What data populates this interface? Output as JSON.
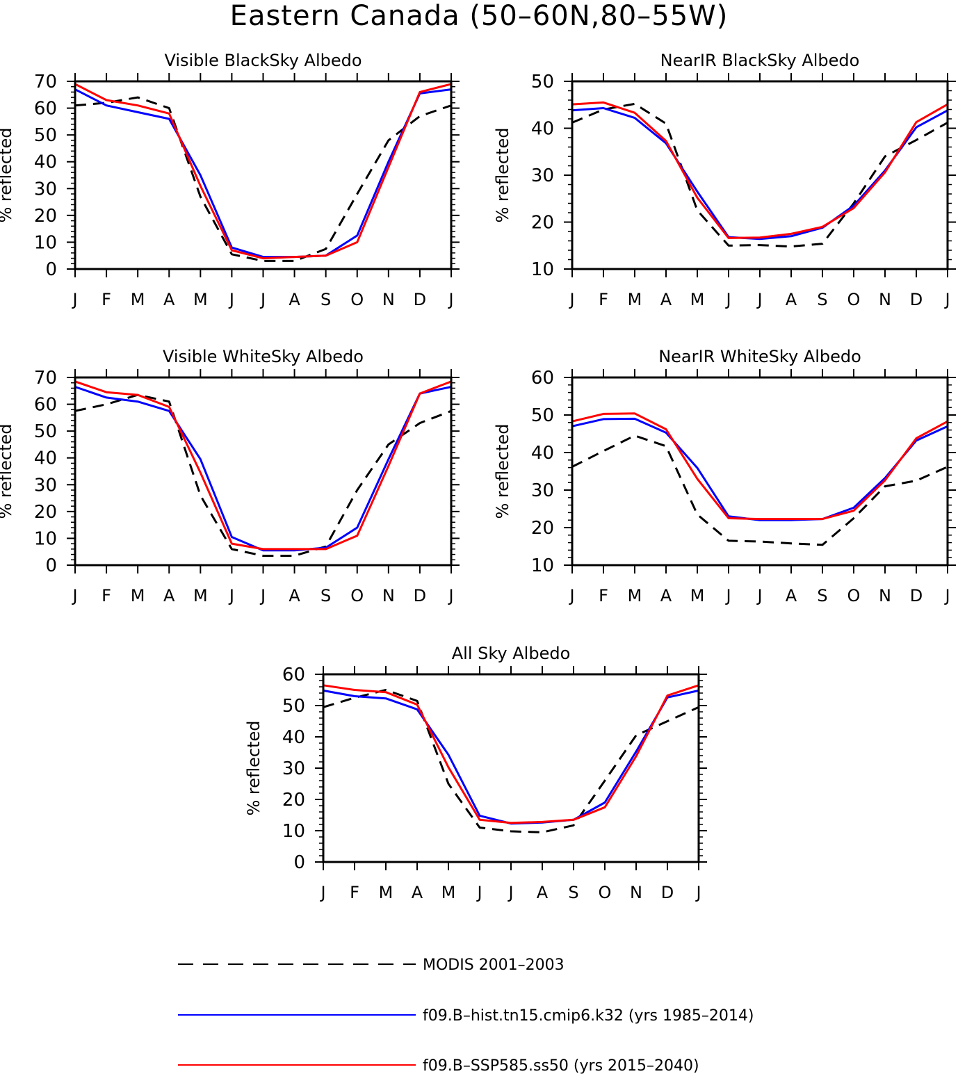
{
  "title": "Eastern Canada (50–60N,80–55W)",
  "colors": {
    "modis": "#000000",
    "hist": "#0000ff",
    "ssp": "#ff0000"
  },
  "legend": [
    {
      "key": "modis",
      "label": "MODIS 2001–2003",
      "style": "dashed"
    },
    {
      "key": "hist",
      "label": "f09.B–hist.tn15.cmip6.k32 (yrs 1985–2014)",
      "style": "solid"
    },
    {
      "key": "ssp",
      "label": "f09.B–SSP585.ss50 (yrs 2015–2040)",
      "style": "solid"
    }
  ],
  "chart_data": [
    {
      "type": "line",
      "title": "Visible BlackSky Albedo",
      "ylabel": "% reflected",
      "x_labels": [
        "J",
        "F",
        "M",
        "A",
        "M",
        "J",
        "J",
        "A",
        "S",
        "O",
        "N",
        "D",
        "J"
      ],
      "ylim": [
        0,
        70
      ],
      "yticks": [
        0,
        10,
        20,
        30,
        40,
        50,
        60,
        70
      ],
      "series": {
        "modis": [
          61,
          62,
          64,
          60,
          27,
          5.5,
          3,
          3,
          7.5,
          28,
          48,
          57,
          61
        ],
        "hist": [
          67,
          61,
          58.5,
          56,
          35,
          8,
          4.5,
          4.5,
          5,
          12.5,
          40,
          65.5,
          67
        ],
        "ssp": [
          69,
          63,
          61,
          58,
          31,
          7,
          4,
          4.5,
          5,
          10,
          38,
          66,
          69
        ]
      }
    },
    {
      "type": "line",
      "title": "NearIR BlackSky Albedo",
      "ylabel": "% reflected",
      "x_labels": [
        "J",
        "F",
        "M",
        "A",
        "M",
        "J",
        "J",
        "A",
        "S",
        "O",
        "N",
        "D",
        "J"
      ],
      "ylim": [
        10,
        50
      ],
      "yticks": [
        10,
        20,
        30,
        40,
        50
      ],
      "series": {
        "modis": [
          41.2,
          44,
          45.2,
          41,
          22.5,
          15,
          15.1,
          14.8,
          15.4,
          24,
          34,
          37.5,
          41.2
        ],
        "hist": [
          43.8,
          44.3,
          42.2,
          36.8,
          26.5,
          16.8,
          16.4,
          17,
          18.8,
          23.5,
          31,
          40.2,
          43.8
        ],
        "ssp": [
          45.1,
          45.5,
          43.3,
          37.3,
          25.2,
          16.6,
          16.7,
          17.5,
          19,
          23,
          30.6,
          41.3,
          45.1
        ]
      }
    },
    {
      "type": "line",
      "title": "Visible WhiteSky Albedo",
      "ylabel": "% reflected",
      "x_labels": [
        "J",
        "F",
        "M",
        "A",
        "M",
        "J",
        "J",
        "A",
        "S",
        "O",
        "N",
        "D",
        "J"
      ],
      "ylim": [
        0,
        70
      ],
      "yticks": [
        0,
        10,
        20,
        30,
        40,
        50,
        60,
        70
      ],
      "series": {
        "modis": [
          57.5,
          60,
          63.5,
          61,
          26,
          6,
          3.5,
          3.5,
          7,
          28,
          45,
          53,
          57.5
        ],
        "hist": [
          66.5,
          62.5,
          61,
          57.5,
          39.5,
          10.5,
          5.5,
          5.5,
          6.5,
          14,
          39.5,
          64,
          66.5
        ],
        "ssp": [
          68.5,
          64.5,
          63.5,
          59,
          34.5,
          8,
          6,
          6,
          6,
          11,
          37,
          64,
          68.5
        ]
      }
    },
    {
      "type": "line",
      "title": "NearIR WhiteSky Albedo",
      "ylabel": "% reflected",
      "x_labels": [
        "J",
        "F",
        "M",
        "A",
        "M",
        "J",
        "J",
        "A",
        "S",
        "O",
        "N",
        "D",
        "J"
      ],
      "ylim": [
        10,
        60
      ],
      "yticks": [
        10,
        20,
        30,
        40,
        50,
        60
      ],
      "series": {
        "modis": [
          36.2,
          40.4,
          44.5,
          41.7,
          23.5,
          16.5,
          16.3,
          15.8,
          15.4,
          22.5,
          31,
          32.5,
          36.2
        ],
        "hist": [
          47,
          48.9,
          49,
          45.3,
          35.9,
          23,
          22,
          22,
          22.3,
          25.3,
          33.2,
          43.2,
          47
        ],
        "ssp": [
          48.3,
          50.3,
          50.4,
          46.2,
          33,
          22.5,
          22.3,
          22.3,
          22.3,
          24.5,
          32.6,
          43.8,
          48.3
        ]
      }
    },
    {
      "type": "line",
      "title": "All Sky Albedo",
      "ylabel": "% reflected",
      "x_labels": [
        "J",
        "F",
        "M",
        "A",
        "M",
        "J",
        "J",
        "A",
        "S",
        "O",
        "N",
        "D",
        "J"
      ],
      "ylim": [
        0,
        60
      ],
      "yticks": [
        0,
        10,
        20,
        30,
        40,
        50,
        60
      ],
      "series": {
        "modis": [
          49.5,
          52.5,
          55,
          51.5,
          25,
          11,
          9.8,
          9.5,
          11.7,
          26,
          40.5,
          45,
          49.5
        ],
        "hist": [
          54.8,
          53,
          52.3,
          48.8,
          34.3,
          14.8,
          12.3,
          12.6,
          13.5,
          19,
          35.3,
          52.6,
          54.8
        ],
        "ssp": [
          56.5,
          55,
          54.3,
          50.3,
          30.3,
          13.5,
          12.5,
          12.8,
          13.5,
          17.5,
          33.8,
          53.2,
          56.5
        ]
      }
    }
  ]
}
